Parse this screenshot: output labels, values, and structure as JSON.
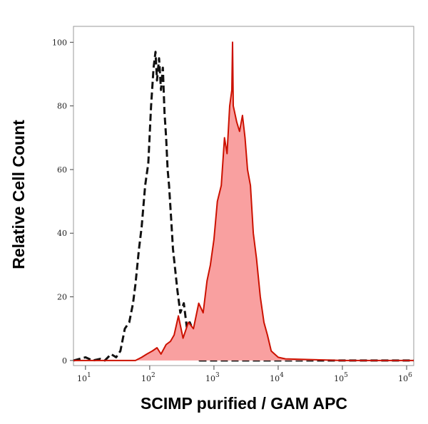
{
  "chart_data": {
    "type": "histogram-overlay",
    "xlabel": "SCIMP purified / GAM APC",
    "ylabel": "Relative Cell Count",
    "xscale": "log",
    "xlim": [
      6.5,
      1290000
    ],
    "ylim": [
      -1.6,
      105
    ],
    "xticks": [
      {
        "value": 10,
        "label": "10",
        "exponent": "1"
      },
      {
        "value": 100,
        "label": "10",
        "exponent": "2"
      },
      {
        "value": 1000,
        "label": "10",
        "exponent": "3"
      },
      {
        "value": 10000,
        "label": "10",
        "exponent": "4"
      },
      {
        "value": 100000,
        "label": "10",
        "exponent": "5"
      },
      {
        "value": 1000000,
        "label": "10",
        "exponent": "6"
      }
    ],
    "yticks": [
      0,
      20,
      40,
      60,
      80,
      100
    ],
    "series": [
      {
        "color": "#111111",
        "style": "dashed",
        "fill": false,
        "x": [
          6.5,
          10,
          13,
          17,
          20,
          25,
          30,
          35,
          41,
          48,
          55,
          60,
          68,
          75,
          85,
          95,
          105,
          115,
          123,
          130,
          140,
          150,
          160,
          170,
          180,
          190,
          200,
          215,
          230,
          245,
          270,
          300,
          340,
          380,
          420,
          464,
          520,
          600,
          800,
          1290000
        ],
        "values": [
          0,
          1,
          0,
          0.5,
          0,
          2,
          1,
          3,
          10,
          12,
          18,
          24,
          35,
          42,
          55,
          62,
          80,
          92,
          97,
          88,
          95,
          85,
          92,
          78,
          70,
          60,
          55,
          45,
          35,
          30,
          22,
          15,
          18,
          10,
          12,
          10,
          4,
          0,
          0,
          0
        ]
      },
      {
        "color": "#cc1100",
        "style": "solid",
        "fill": true,
        "fillColor": "#f9a0a0",
        "x": [
          6.5,
          60,
          75,
          90,
          110,
          130,
          150,
          180,
          210,
          240,
          280,
          330,
          400,
          480,
          580,
          680,
          780,
          880,
          1000,
          1130,
          1300,
          1460,
          1600,
          1760,
          1900,
          1950,
          2000,
          2260,
          2500,
          2780,
          3050,
          3330,
          3700,
          4100,
          4600,
          5270,
          6000,
          6800,
          7800,
          8800,
          10000,
          13000,
          100000,
          1290000
        ],
        "values": [
          0,
          0,
          1,
          2,
          3,
          4,
          2,
          5,
          6,
          8,
          14,
          7,
          12,
          10,
          18,
          15,
          25,
          30,
          38,
          50,
          55,
          70,
          65,
          80,
          85,
          100,
          80,
          75,
          72,
          77,
          70,
          60,
          55,
          40,
          32,
          20,
          12,
          8,
          3,
          2,
          1,
          0.5,
          0,
          0
        ]
      }
    ]
  }
}
